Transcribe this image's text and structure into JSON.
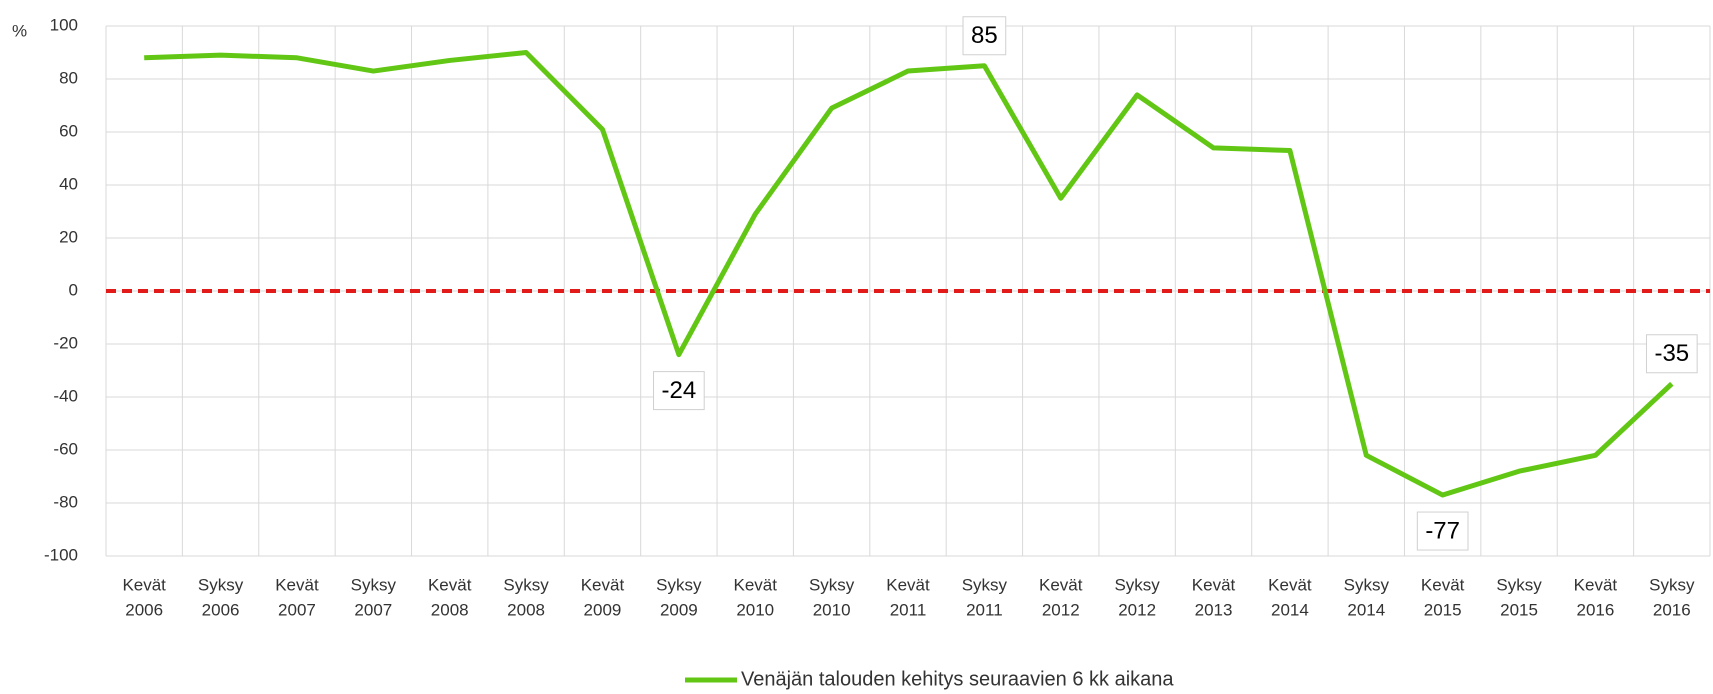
{
  "chart_data": {
    "type": "line",
    "y_label": "%",
    "categories": [
      [
        "Kevät",
        "2006"
      ],
      [
        "Syksy",
        "2006"
      ],
      [
        "Kevät",
        "2007"
      ],
      [
        "Syksy",
        "2007"
      ],
      [
        "Kevät",
        "2008"
      ],
      [
        "Syksy",
        "2008"
      ],
      [
        "Kevät",
        "2009"
      ],
      [
        "Syksy",
        "2009"
      ],
      [
        "Kevät",
        "2010"
      ],
      [
        "Syksy",
        "2010"
      ],
      [
        "Kevät",
        "2011"
      ],
      [
        "Syksy",
        "2011"
      ],
      [
        "Kevät",
        "2012"
      ],
      [
        "Syksy",
        "2012"
      ],
      [
        "Kevät",
        "2013"
      ],
      [
        "Kevät",
        "2014"
      ],
      [
        "Syksy",
        "2014"
      ],
      [
        "Kevät",
        "2015"
      ],
      [
        "Syksy",
        "2015"
      ],
      [
        "Kevät",
        "2016"
      ],
      [
        "Syksy",
        "2016"
      ]
    ],
    "series": [
      {
        "name": "Venäjän talouden kehitys seuraavien 6 kk aikana",
        "color": "#62c714",
        "values": [
          88,
          89,
          88,
          83,
          87,
          90,
          61,
          -24,
          29,
          69,
          83,
          85,
          35,
          74,
          54,
          53,
          -62,
          -77,
          -68,
          -62,
          -35
        ],
        "value_labels": [
          null,
          null,
          null,
          null,
          null,
          null,
          null,
          "-24",
          null,
          null,
          null,
          "85",
          null,
          null,
          null,
          null,
          null,
          "-77",
          null,
          null,
          "-35"
        ]
      }
    ],
    "ylim": [
      -100,
      100
    ],
    "yticks": [
      -100,
      -80,
      -60,
      -40,
      -20,
      0,
      20,
      40,
      60,
      80,
      100
    ],
    "grid": true,
    "reference_line": {
      "value": 0,
      "color": "#e31a1a"
    },
    "legend": "bottom"
  }
}
